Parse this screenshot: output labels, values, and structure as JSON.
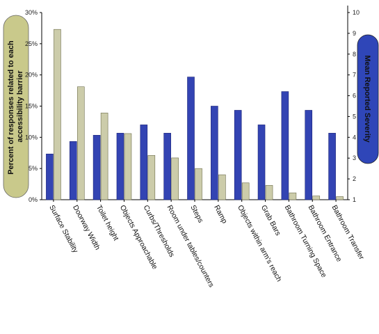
{
  "chart_data": {
    "type": "bar",
    "categories": [
      "Surface Stability",
      "Doorway Width",
      "Toilet height",
      "Objects Approachable",
      "Curbs/Thresholds",
      "Room under tables/counters",
      "Steps",
      "Ramp",
      "Objects within arm's reach",
      "Grab Bars",
      "Bathroom Turning Space",
      "Bathroom Entrance",
      "Bathroom Transfer"
    ],
    "series": [
      {
        "axis": "right",
        "color": "#3344b3",
        "values": [
          3.2,
          3.8,
          4.1,
          4.2,
          4.6,
          4.2,
          6.9,
          5.5,
          5.3,
          4.6,
          6.2,
          5.3,
          4.2
        ]
      },
      {
        "axis": "left",
        "color": "#ccccaa",
        "values": [
          27.3,
          18.1,
          13.9,
          10.6,
          7.1,
          6.7,
          5.0,
          4.0,
          2.7,
          2.3,
          1.1,
          0.6,
          0.5
        ]
      }
    ],
    "ylabel": "Percent of responses related to each accessibility barrier",
    "y2label": "Mean Reported Severity",
    "ylim": [
      0,
      30
    ],
    "y2lim": [
      1,
      10
    ],
    "yticks": [
      "0%",
      "5%",
      "10%",
      "15%",
      "20%",
      "25%",
      "30%"
    ],
    "y2ticks": [
      "1",
      "2",
      "3",
      "4",
      "5",
      "6",
      "7",
      "8",
      "9",
      "10"
    ],
    "colors": {
      "left_label_bg": "#c9c98b",
      "right_label_bg": "#2f46b8"
    }
  }
}
